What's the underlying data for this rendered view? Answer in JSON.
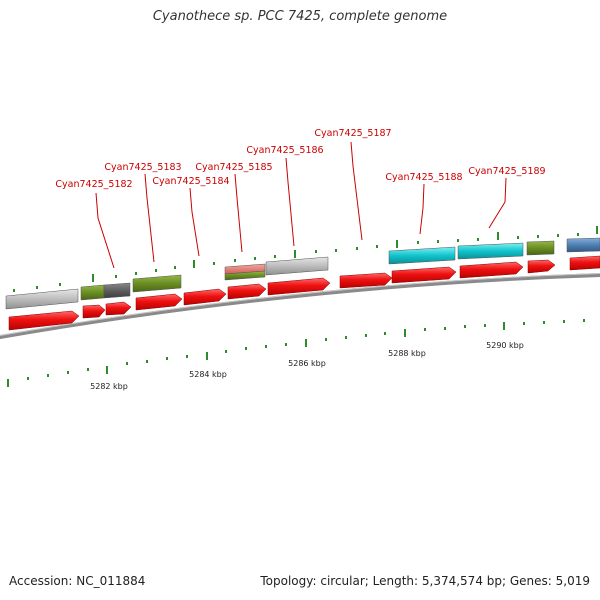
{
  "title": "Cyanothece sp. PCC 7425, complete genome",
  "footer": {
    "accession": "Accession: NC_011884",
    "summary": "Topology: circular; Length: 5,374,574 bp; Genes: 5,019"
  },
  "colors": {
    "forward_cds": "#ee1111",
    "label": "#cc0000",
    "gray_feature": "#bbbbbb",
    "dark_gray_feature": "#666666",
    "olive_feature": "#6b8e23",
    "cyan_feature": "#11c4cc",
    "salmon_feature": "#e37b74",
    "steelblue_feature": "#4f7fb0",
    "backbone": "#8a8a8a",
    "tick": "#2e8b2e"
  },
  "labels": [
    {
      "name": "Cyan7425_5182"
    },
    {
      "name": "Cyan7425_5183"
    },
    {
      "name": "Cyan7425_5184"
    },
    {
      "name": "Cyan7425_5185"
    },
    {
      "name": "Cyan7425_5186"
    },
    {
      "name": "Cyan7425_5187"
    },
    {
      "name": "Cyan7425_5188"
    },
    {
      "name": "Cyan7425_5189"
    }
  ],
  "scale": [
    "5282 kbp",
    "5284 kbp",
    "5286 kbp",
    "5288 kbp",
    "5290 kbp"
  ]
}
